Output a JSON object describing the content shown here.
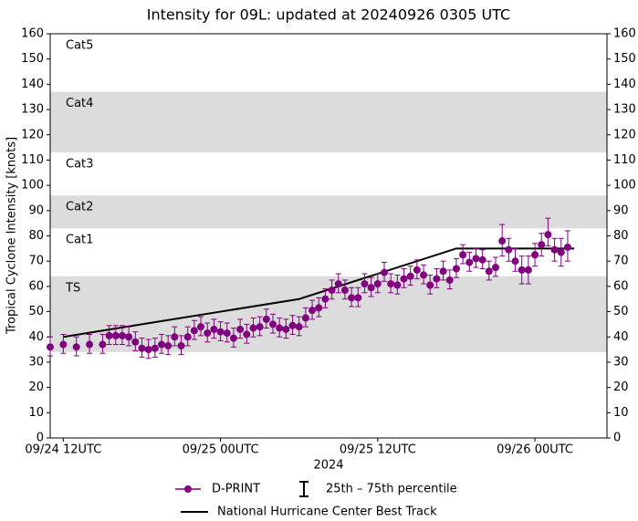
{
  "chart_data": {
    "type": "scatter",
    "title": "Intensity for 09L: updated at 20240926 0305 UTC",
    "ylabel": "Tropical Cyclone Intensity [knots]",
    "xlabel": "2024",
    "ylim": [
      0,
      160
    ],
    "yticks": [
      0,
      10,
      20,
      30,
      40,
      50,
      60,
      70,
      80,
      90,
      100,
      110,
      120,
      130,
      140,
      150,
      160
    ],
    "xlim": [
      "2024-09-24 11:00",
      "2024-09-26 05:30"
    ],
    "xticks": [
      {
        "value": "2024-09-24 12:00",
        "label": "09/24 12UTC"
      },
      {
        "value": "2024-09-25 00:00",
        "label": "09/25 00UTC"
      },
      {
        "value": "2024-09-25 12:00",
        "label": "09/25 12UTC"
      },
      {
        "value": "2024-09-26 00:00",
        "label": "09/26 00UTC"
      }
    ],
    "bands": [
      {
        "label": "TS",
        "range": [
          34,
          64
        ],
        "shaded": true,
        "color": "#dcdcdc"
      },
      {
        "label": "Cat1",
        "range": [
          64,
          83
        ],
        "shaded": false
      },
      {
        "label": "Cat2",
        "range": [
          83,
          96
        ],
        "shaded": true,
        "color": "#dcdcdc"
      },
      {
        "label": "Cat3",
        "range": [
          96,
          113
        ],
        "shaded": false
      },
      {
        "label": "Cat4",
        "range": [
          113,
          137
        ],
        "shaded": true,
        "color": "#dcdcdc"
      },
      {
        "label": "Cat5",
        "range": [
          137,
          160
        ],
        "shaded": false
      }
    ],
    "percentile_legend": "25th – 75th percentile",
    "series": [
      {
        "name": "D-PRINT",
        "type": "scatter",
        "color": "#800080",
        "x": [
          "2024-09-24 11:00",
          "2024-09-24 12:00",
          "2024-09-24 13:00",
          "2024-09-24 14:00",
          "2024-09-24 15:00",
          "2024-09-24 15:30",
          "2024-09-24 16:00",
          "2024-09-24 16:30",
          "2024-09-24 17:00",
          "2024-09-24 17:30",
          "2024-09-24 18:00",
          "2024-09-24 18:30",
          "2024-09-24 19:00",
          "2024-09-24 19:30",
          "2024-09-24 20:00",
          "2024-09-24 20:30",
          "2024-09-24 21:00",
          "2024-09-24 21:30",
          "2024-09-24 22:00",
          "2024-09-24 22:30",
          "2024-09-24 23:00",
          "2024-09-24 23:30",
          "2024-09-25 00:00",
          "2024-09-25 00:30",
          "2024-09-25 01:00",
          "2024-09-25 01:30",
          "2024-09-25 02:00",
          "2024-09-25 02:30",
          "2024-09-25 03:00",
          "2024-09-25 03:30",
          "2024-09-25 04:00",
          "2024-09-25 04:30",
          "2024-09-25 05:00",
          "2024-09-25 05:30",
          "2024-09-25 06:00",
          "2024-09-25 06:30",
          "2024-09-25 07:00",
          "2024-09-25 07:30",
          "2024-09-25 08:00",
          "2024-09-25 08:30",
          "2024-09-25 09:00",
          "2024-09-25 09:30",
          "2024-09-25 10:00",
          "2024-09-25 10:30",
          "2024-09-25 11:00",
          "2024-09-25 11:30",
          "2024-09-25 12:00",
          "2024-09-25 12:30",
          "2024-09-25 13:00",
          "2024-09-25 13:30",
          "2024-09-25 14:00",
          "2024-09-25 14:30",
          "2024-09-25 15:00",
          "2024-09-25 15:30",
          "2024-09-25 16:00",
          "2024-09-25 16:30",
          "2024-09-25 17:00",
          "2024-09-25 17:30",
          "2024-09-25 18:00",
          "2024-09-25 18:30",
          "2024-09-25 19:00",
          "2024-09-25 19:30",
          "2024-09-25 20:00",
          "2024-09-25 20:30",
          "2024-09-25 21:00",
          "2024-09-25 21:30",
          "2024-09-25 22:00",
          "2024-09-25 22:30",
          "2024-09-25 23:00",
          "2024-09-25 23:30",
          "2024-09-26 00:00",
          "2024-09-26 00:30",
          "2024-09-26 01:00",
          "2024-09-26 01:30",
          "2024-09-26 02:00",
          "2024-09-26 02:30"
        ],
        "values": [
          36,
          37,
          36,
          37,
          37,
          40.5,
          40.5,
          40.5,
          40,
          38,
          35.5,
          35,
          35.5,
          37,
          36.5,
          40,
          36.5,
          40,
          42.5,
          44,
          41.5,
          43,
          42,
          41.5,
          39.5,
          43,
          41,
          43.5,
          44,
          47,
          45,
          43.5,
          43,
          44.5,
          44,
          47.5,
          50.5,
          51.5,
          55,
          58.5,
          61,
          58.5,
          55.5,
          55.5,
          61,
          59.5,
          61,
          65.5,
          61,
          60.5,
          63,
          64,
          66.5,
          64.5,
          60.5,
          63,
          66,
          62.5,
          67,
          72.5,
          69.5,
          71,
          70.5,
          66,
          67.5,
          78,
          74.5,
          70,
          66.5,
          66.5,
          72.5,
          76.5,
          80.5,
          74.5,
          73.5,
          75.5
        ],
        "q25": [
          32.5,
          33.5,
          32.5,
          33.5,
          33.5,
          37,
          37,
          37,
          36.5,
          34.5,
          32,
          31.5,
          32,
          33.5,
          33,
          36.5,
          33,
          36.5,
          39,
          40.5,
          38,
          39.5,
          38.5,
          38,
          36,
          39.5,
          37.5,
          40,
          40.5,
          43.5,
          41.5,
          40,
          39.5,
          41,
          40.5,
          44,
          47,
          48,
          51.5,
          55,
          57.5,
          55,
          52,
          52,
          57.5,
          56,
          57.5,
          62,
          57.5,
          57,
          59.5,
          60.5,
          63,
          61,
          57,
          59.5,
          62.5,
          59,
          63.5,
          69,
          66,
          67.5,
          67,
          62.5,
          64,
          72,
          70,
          66,
          61,
          61,
          68,
          72,
          76,
          70,
          68,
          70
        ],
        "q75": [
          40,
          41,
          40,
          41,
          41,
          44.5,
          44.5,
          44.5,
          44,
          42,
          39.5,
          39,
          39.5,
          41,
          40.5,
          44,
          40.5,
          44,
          46.5,
          48,
          45.5,
          47,
          46,
          45.5,
          43.5,
          47,
          45,
          47.5,
          48,
          51,
          49,
          47.5,
          47,
          48.5,
          48,
          51.5,
          54.5,
          55.5,
          59,
          62.5,
          65,
          62.5,
          59.5,
          59.5,
          65,
          63.5,
          65,
          69.5,
          65,
          64.5,
          67,
          68,
          70.5,
          68.5,
          64.5,
          67,
          70,
          66.5,
          71,
          76.5,
          73.5,
          75,
          74.5,
          70,
          71.5,
          84.5,
          79,
          75,
          72,
          72,
          77,
          81,
          87,
          79,
          79,
          82
        ]
      },
      {
        "name": "National Hurricane Center Best Track",
        "type": "line",
        "color": "#000000",
        "x": [
          "2024-09-24 12:00",
          "2024-09-24 18:00",
          "2024-09-25 00:00",
          "2024-09-25 06:00",
          "2024-09-25 12:00",
          "2024-09-25 18:00",
          "2024-09-26 00:00",
          "2024-09-26 03:00"
        ],
        "values": [
          40,
          45,
          50,
          55,
          65,
          75,
          75,
          75
        ]
      }
    ]
  }
}
